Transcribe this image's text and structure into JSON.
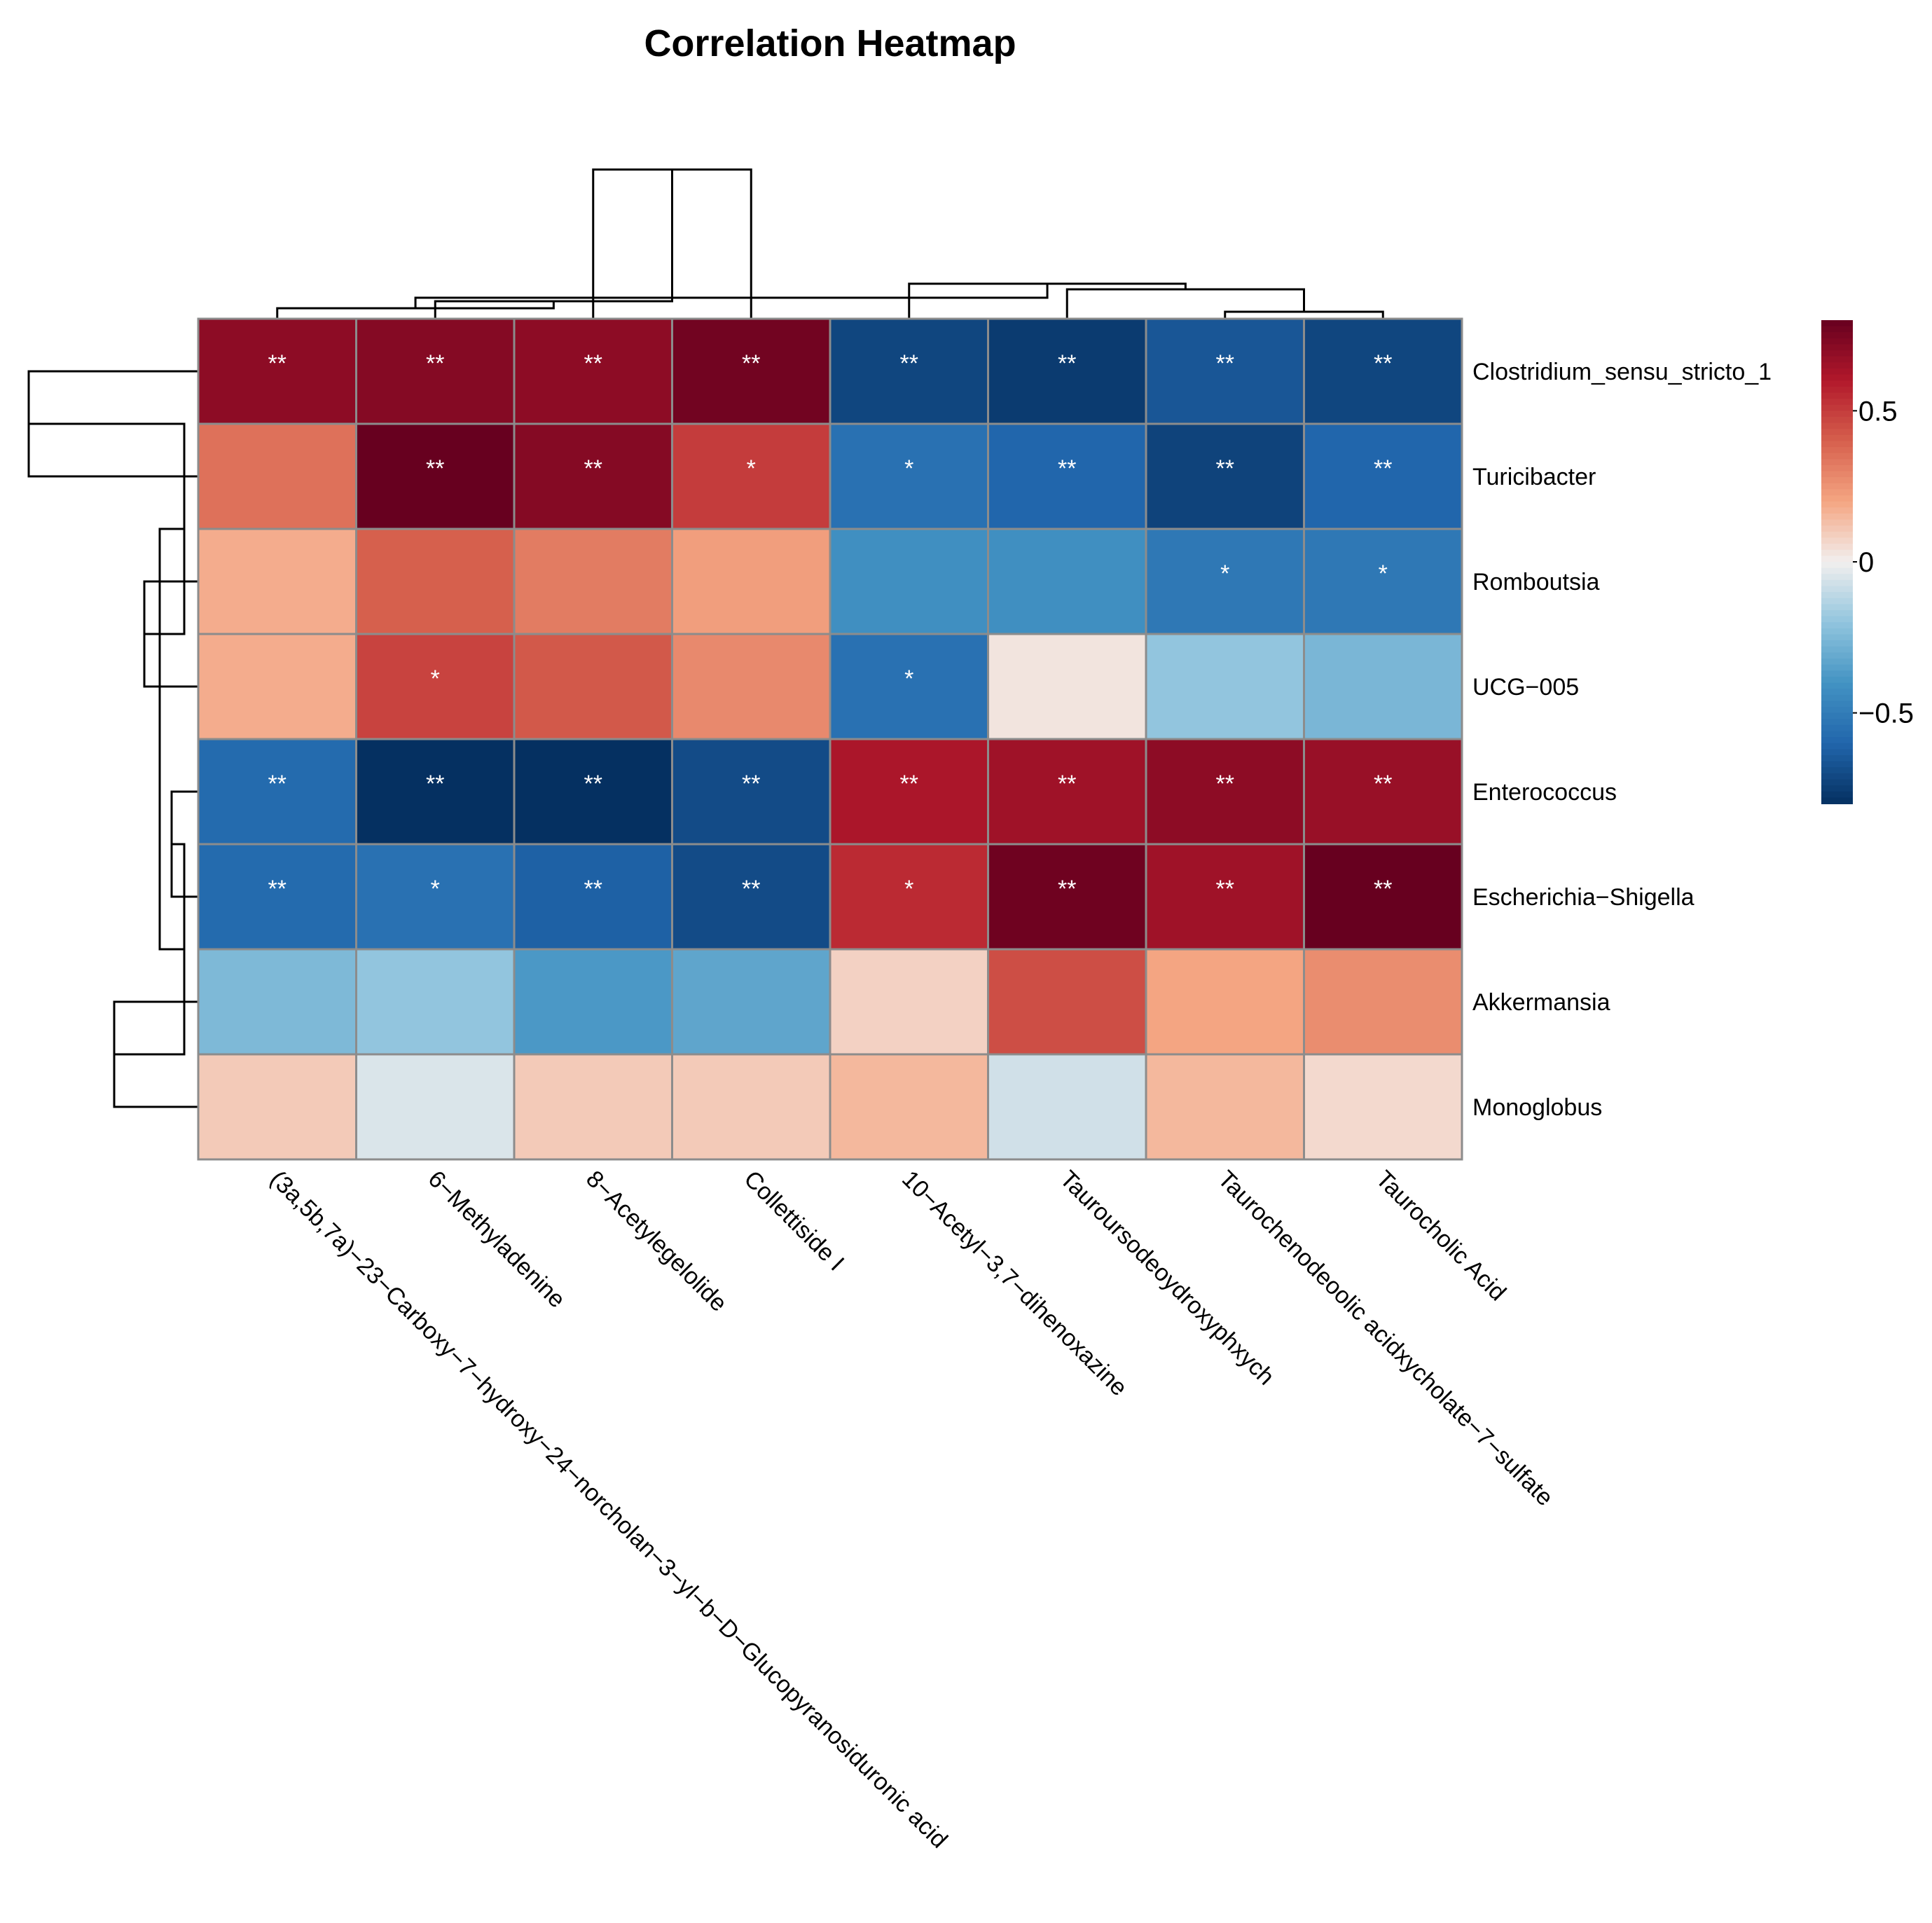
{
  "chart_data": {
    "type": "heatmap",
    "title": "Correlation Heatmap",
    "columns": [
      "(3a,5b,7a)−23−Carboxy−7−hydroxy−24−norcholan−3−yl−b−D−Glucopyranosiduronic acid",
      "6−Methyladenine",
      "8−Acetylegelolide",
      "Collettiside I",
      "10−Acetyl−3,7−dihenoxazine",
      "Tauroursodeoydroxyphxych",
      "Taurochenodeoolic acidxycholate−7−sulfate",
      "Taurocholic Acid"
    ],
    "rows": [
      "Clostridium_sensu_stricto_1",
      "Turicibacter",
      "Romboutsia",
      "UCG−005",
      "Enterococcus",
      "Escherichia−Shigella",
      "Akkermansia",
      "Monoglobus"
    ],
    "values": [
      [
        0.7,
        0.72,
        0.7,
        0.77,
        -0.72,
        -0.76,
        -0.66,
        -0.72
      ],
      [
        0.35,
        0.8,
        0.72,
        0.5,
        -0.55,
        -0.6,
        -0.73,
        -0.6
      ],
      [
        0.18,
        0.4,
        0.32,
        0.22,
        -0.42,
        -0.42,
        -0.52,
        -0.52
      ],
      [
        0.18,
        0.48,
        0.42,
        0.28,
        -0.55,
        0.03,
        -0.2,
        -0.26
      ],
      [
        -0.58,
        -0.83,
        -0.83,
        -0.7,
        0.62,
        0.65,
        0.7,
        0.67
      ],
      [
        -0.58,
        -0.55,
        -0.62,
        -0.7,
        0.55,
        0.78,
        0.65,
        0.82
      ],
      [
        -0.25,
        -0.2,
        -0.38,
        -0.33,
        0.08,
        0.45,
        0.2,
        0.27
      ],
      [
        0.1,
        -0.05,
        0.1,
        0.1,
        0.15,
        -0.07,
        0.15,
        0.06
      ]
    ],
    "significance": [
      [
        "**",
        "**",
        "**",
        "**",
        "**",
        "**",
        "**",
        "**"
      ],
      [
        "",
        "**",
        "**",
        "*",
        "*",
        "**",
        "**",
        "**"
      ],
      [
        "",
        "",
        "",
        "",
        "",
        "",
        "*",
        "*"
      ],
      [
        "",
        "*",
        "",
        "",
        "*",
        "",
        "",
        ""
      ],
      [
        "**",
        "**",
        "**",
        "**",
        "**",
        "**",
        "**",
        "**"
      ],
      [
        "**",
        "*",
        "**",
        "**",
        "*",
        "**",
        "**",
        "**"
      ],
      [
        "",
        "",
        "",
        "",
        "",
        "",
        "",
        ""
      ],
      [
        "",
        "",
        "",
        "",
        "",
        "",
        "",
        ""
      ]
    ],
    "colorbar": {
      "range": [
        -0.8,
        0.8
      ],
      "ticks": [
        0.5,
        0,
        -0.5
      ],
      "tick_labels": [
        "0.5",
        "0",
        "−0.5"
      ],
      "low_color": "#053061",
      "mid_color": "#f2efee",
      "high_color": "#67001f"
    },
    "column_dendrogram": "((c1,(c2,(c3,c4))),(c5,(c6,(c7,c8))))",
    "row_dendrogram": "(((r1,r2),(r3,r4)),((r5,r6),(r7,r8)))"
  }
}
